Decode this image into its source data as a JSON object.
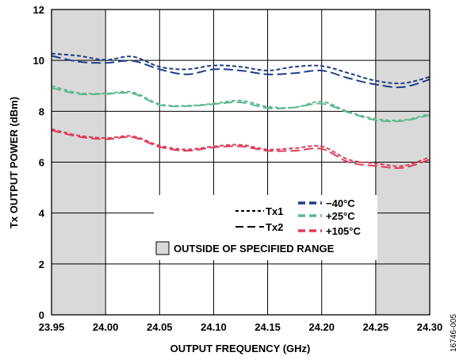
{
  "chart_data": {
    "type": "line",
    "xlabel": "OUTPUT FREQUENCY (GHz)",
    "ylabel": "Tx OUTPUT POWER (dBm)",
    "xlim": [
      23.95,
      24.3
    ],
    "ylim": [
      0,
      12
    ],
    "x_ticks": [
      "23.95",
      "24.00",
      "24.05",
      "24.10",
      "24.15",
      "24.20",
      "24.25",
      "24.30"
    ],
    "y_ticks": [
      "0",
      "2",
      "4",
      "6",
      "8",
      "10",
      "12"
    ],
    "grid": true,
    "shaded_regions": [
      [
        23.95,
        24.0
      ],
      [
        24.25,
        24.3
      ]
    ],
    "shaded_label": "OUTSIDE OF SPECIFIED RANGE",
    "figure_id": "16746-005",
    "style_legend": [
      {
        "name": "Tx1",
        "dash": "short"
      },
      {
        "name": "Tx2",
        "dash": "long"
      }
    ],
    "color_legend": [
      {
        "name": "−40°C",
        "color": "#1f3f87"
      },
      {
        "name": "+25°C",
        "color": "#5fb88f"
      },
      {
        "name": "+105°C",
        "color": "#e03c5a"
      }
    ],
    "x": [
      23.95,
      23.975,
      24.0,
      24.025,
      24.05,
      24.075,
      24.1,
      24.125,
      24.15,
      24.175,
      24.2,
      24.225,
      24.25,
      24.275,
      24.3
    ],
    "series": [
      {
        "name": "Tx1 −40°C",
        "color": "#1f3f87",
        "dash": "short",
        "values": [
          10.27,
          10.18,
          10.02,
          10.15,
          9.75,
          9.65,
          9.8,
          9.75,
          9.6,
          9.75,
          9.78,
          9.5,
          9.2,
          9.1,
          9.35
        ]
      },
      {
        "name": "Tx2 −40°C",
        "color": "#1f3f87",
        "dash": "long",
        "values": [
          10.18,
          9.95,
          9.9,
          9.98,
          9.65,
          9.45,
          9.65,
          9.6,
          9.45,
          9.5,
          9.6,
          9.3,
          9.05,
          8.95,
          9.25
        ]
      },
      {
        "name": "Tx1 +25°C",
        "color": "#5fb88f",
        "dash": "short",
        "values": [
          9.0,
          8.72,
          8.7,
          8.75,
          8.28,
          8.22,
          8.3,
          8.42,
          8.18,
          8.15,
          8.38,
          7.98,
          7.7,
          7.65,
          7.9
        ]
      },
      {
        "name": "Tx2 +25°C",
        "color": "#5fb88f",
        "dash": "long",
        "values": [
          8.92,
          8.68,
          8.68,
          8.7,
          8.25,
          8.2,
          8.28,
          8.35,
          8.12,
          8.15,
          8.3,
          7.95,
          7.65,
          7.62,
          7.85
        ]
      },
      {
        "name": "Tx1 +105°C",
        "color": "#e03c5a",
        "dash": "short",
        "values": [
          7.3,
          7.05,
          6.95,
          7.02,
          6.65,
          6.5,
          6.62,
          6.68,
          6.5,
          6.55,
          6.62,
          6.1,
          5.95,
          5.85,
          6.2
        ]
      },
      {
        "name": "Tx2 +105°C",
        "color": "#e03c5a",
        "dash": "long",
        "values": [
          7.25,
          7.0,
          6.9,
          6.98,
          6.6,
          6.45,
          6.58,
          6.62,
          6.45,
          6.45,
          6.52,
          6.0,
          5.85,
          5.78,
          6.1
        ]
      }
    ]
  }
}
